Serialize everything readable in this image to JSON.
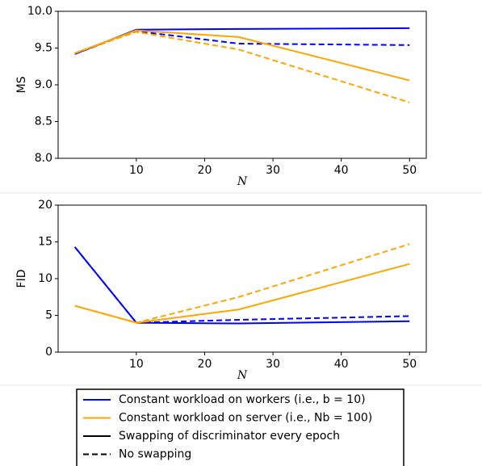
{
  "chart_data": [
    {
      "type": "line",
      "ylabel": "MS",
      "xlabel": "N",
      "x": [
        1,
        10,
        25,
        50
      ],
      "xlim": [
        -1.45,
        52.45
      ],
      "xticks": [
        10,
        20,
        30,
        40,
        50
      ],
      "ylim": [
        8,
        10
      ],
      "yticks": [
        {
          "value": 8,
          "label": "8.0"
        },
        {
          "value": 8.5,
          "label": "8.5"
        },
        {
          "value": 9,
          "label": "9.0"
        },
        {
          "value": 9.5,
          "label": "9.5"
        },
        {
          "value": 10,
          "label": "10.0"
        }
      ],
      "series": [
        {
          "color": "#0000ff",
          "dash": "solid",
          "values": [
            9.42,
            9.75,
            9.76,
            9.77
          ]
        },
        {
          "color": "#0000ff",
          "dash": "dashed",
          "values": [
            9.42,
            9.73,
            9.56,
            9.54
          ]
        },
        {
          "color": "#ffa500",
          "dash": "solid",
          "values": [
            9.43,
            9.74,
            9.65,
            9.06
          ]
        },
        {
          "color": "#ffa500",
          "dash": "dashed",
          "values": [
            9.43,
            9.72,
            9.48,
            8.76
          ]
        }
      ]
    },
    {
      "type": "line",
      "ylabel": "FID",
      "xlabel": "N",
      "x": [
        1,
        10,
        25,
        50
      ],
      "xlim": [
        -1.45,
        52.45
      ],
      "xticks": [
        10,
        20,
        30,
        40,
        50
      ],
      "ylim": [
        0,
        20
      ],
      "yticks": [
        0,
        5,
        10,
        15,
        20
      ],
      "series": [
        {
          "color": "#0000ff",
          "dash": "solid",
          "values": [
            14.3,
            4.0,
            3.9,
            4.2
          ]
        },
        {
          "color": "#0000ff",
          "dash": "dashed",
          "values": [
            14.3,
            4.0,
            4.4,
            4.9
          ]
        },
        {
          "color": "#ffa500",
          "dash": "solid",
          "values": [
            6.3,
            4.0,
            5.8,
            12.0
          ]
        },
        {
          "color": "#ffa500",
          "dash": "dashed",
          "values": [
            6.3,
            4.0,
            7.5,
            14.7
          ]
        }
      ]
    }
  ],
  "legend": {
    "entries": [
      {
        "label": "Constant workload on workers (i.e., b = 10)",
        "color": "#0000ff",
        "dash": "solid"
      },
      {
        "label": "Constant workload on server (i.e., Nb = 100)",
        "color": "#ffa500",
        "dash": "solid"
      },
      {
        "label": "Swapping of discriminator every epoch",
        "color": "#000000",
        "dash": "solid"
      },
      {
        "label": "No swapping",
        "color": "#000000",
        "dash": "dashed"
      }
    ]
  }
}
